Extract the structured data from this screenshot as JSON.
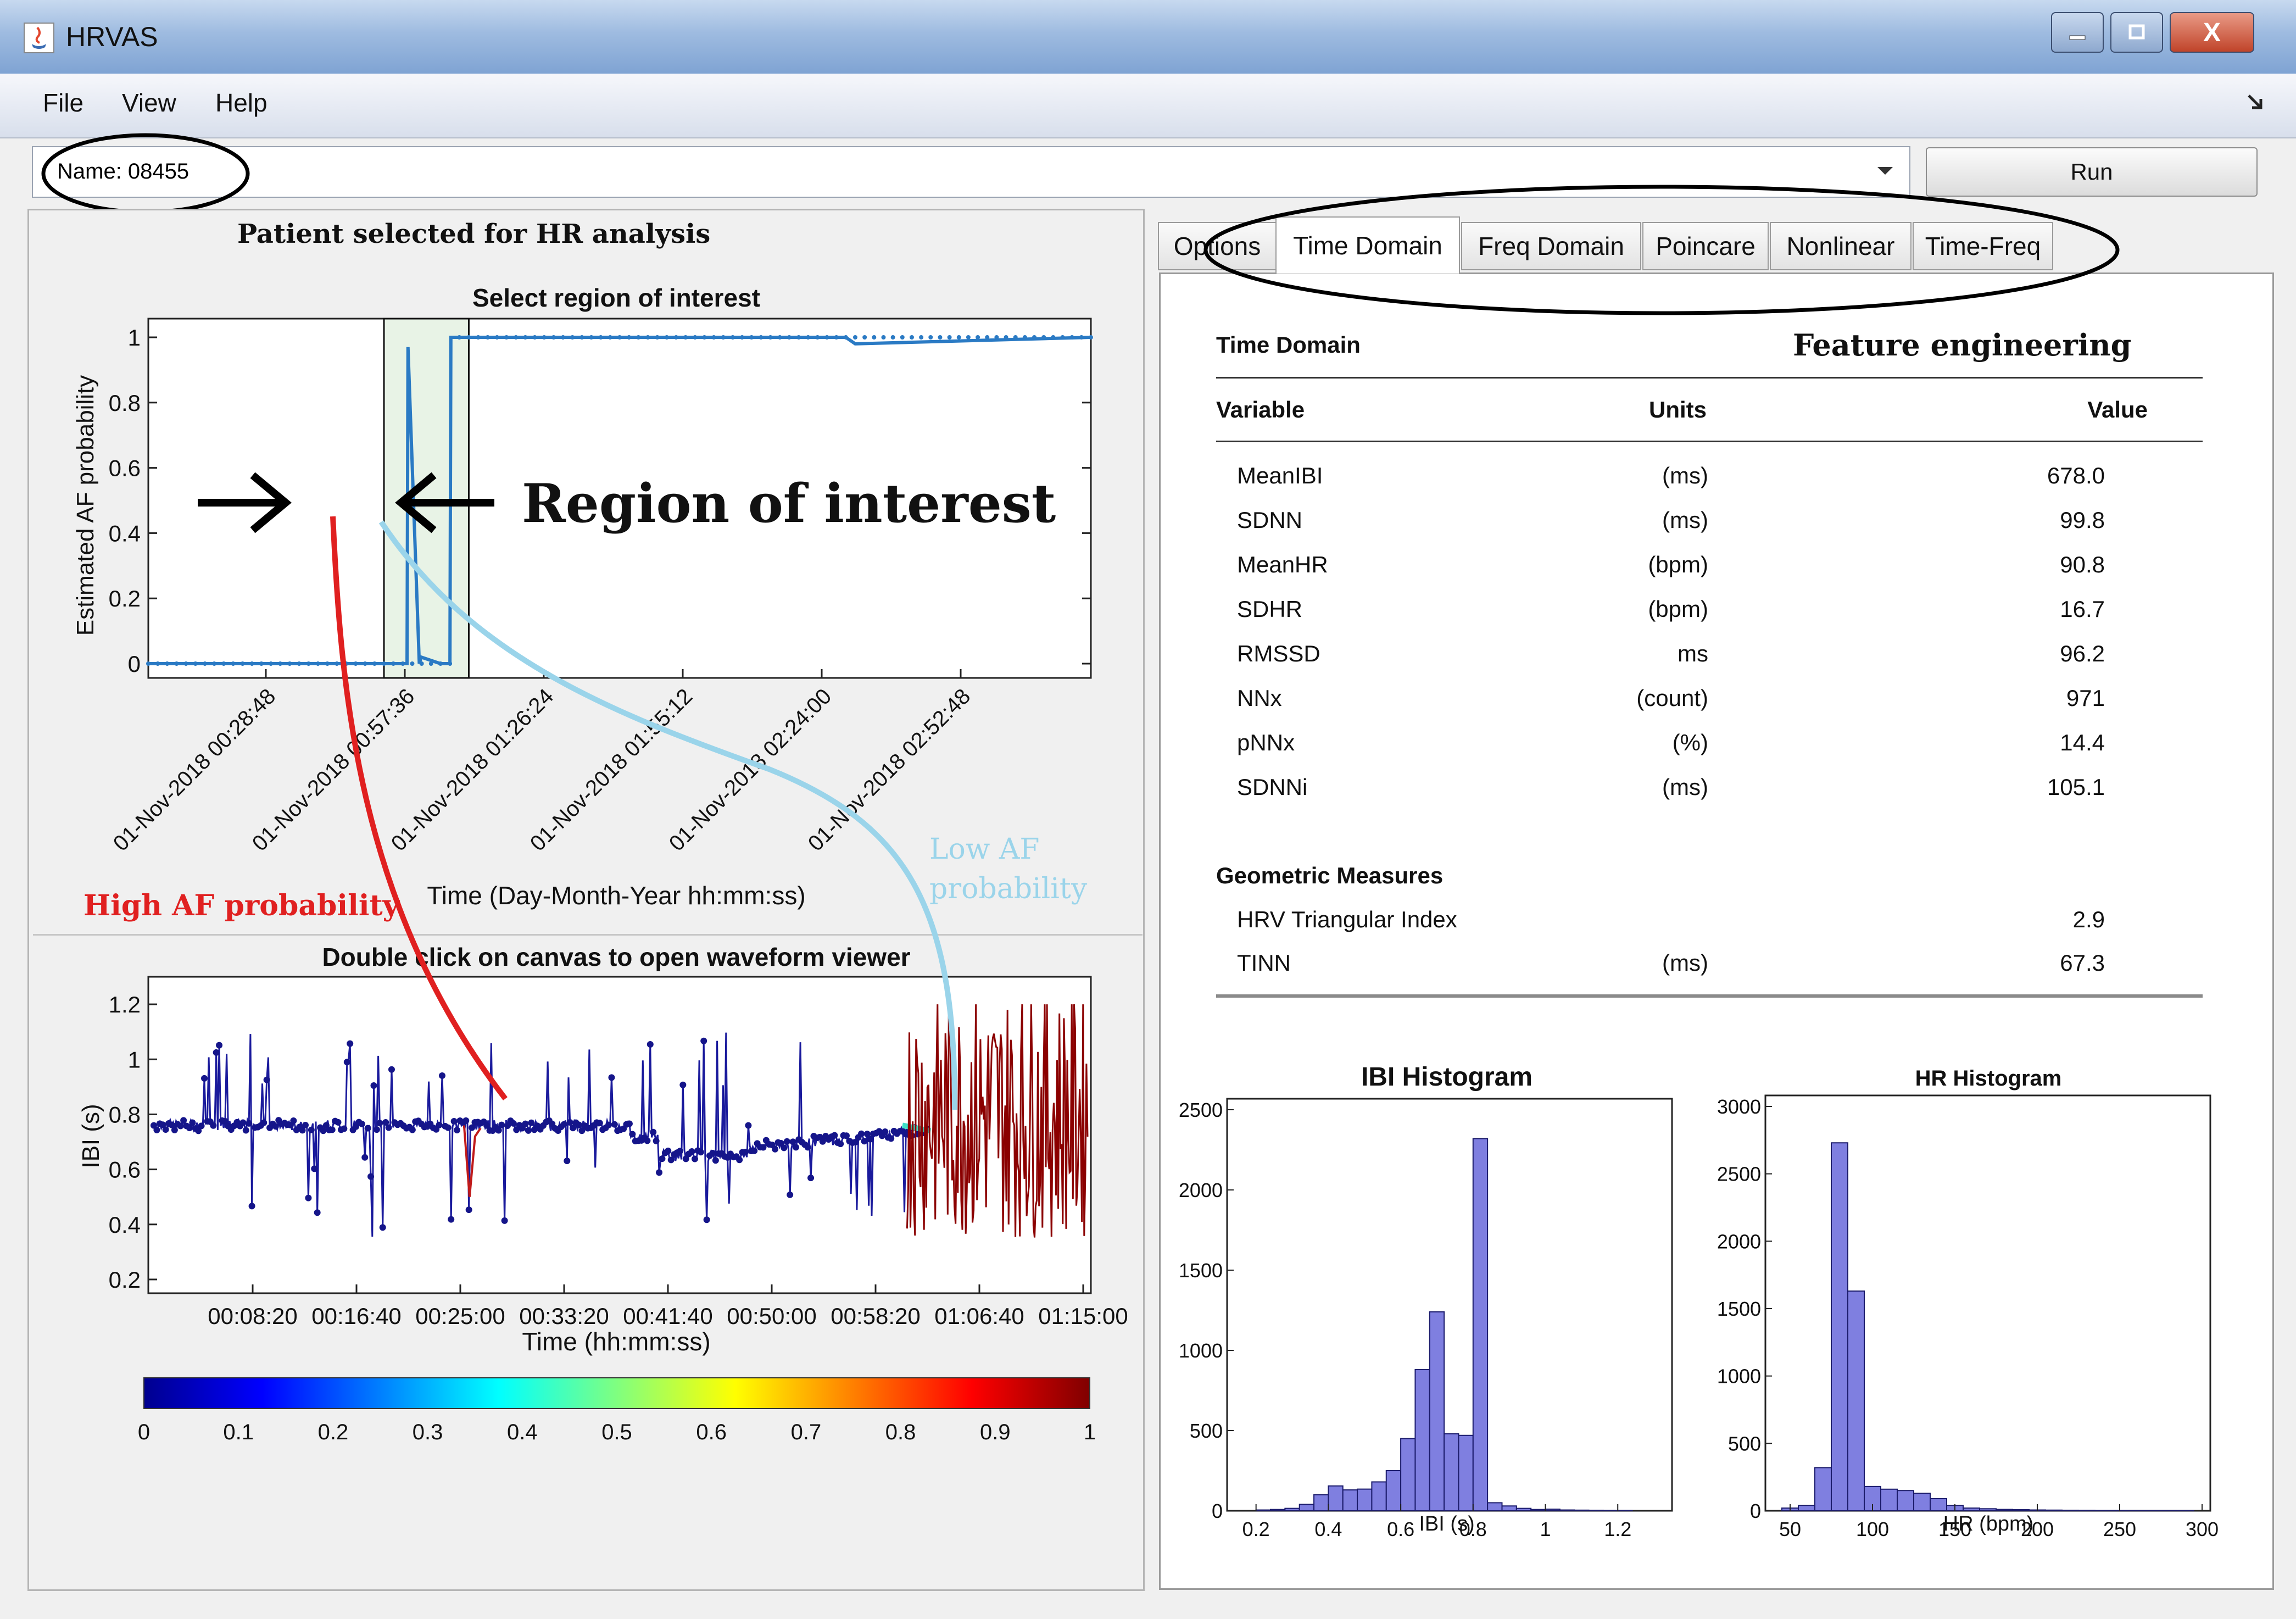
{
  "window": {
    "title": "HRVAS",
    "close_glyph": "X"
  },
  "menu": {
    "items": [
      "File",
      "View",
      "Help"
    ]
  },
  "toolbar": {
    "name_value": "Name: 08455",
    "run_label": "Run"
  },
  "tabs": [
    "Options",
    "Time Domain",
    "Freq Domain",
    "Poincare",
    "Nonlinear",
    "Time-Freq"
  ],
  "active_tab": "Time Domain",
  "annotations": {
    "patient_selected": "Patient selected for HR analysis",
    "region_of_interest": "Region of interest",
    "high_af": "High AF probability",
    "low_af_line1": "Low AF",
    "low_af_line2": "probability",
    "feature_engineering": "Feature engineering"
  },
  "time_domain": {
    "section_title": "Time Domain",
    "columns": [
      "Variable",
      "Units",
      "Value"
    ],
    "rows": [
      {
        "variable": "MeanIBI",
        "units": "(ms)",
        "value": "678.0"
      },
      {
        "variable": "SDNN",
        "units": "(ms)",
        "value": "99.8"
      },
      {
        "variable": "MeanHR",
        "units": "(bpm)",
        "value": "90.8"
      },
      {
        "variable": "SDHR",
        "units": "(bpm)",
        "value": "16.7"
      },
      {
        "variable": "RMSSD",
        "units": "ms",
        "value": "96.2"
      },
      {
        "variable": "NNx",
        "units": "(count)",
        "value": "971"
      },
      {
        "variable": "pNNx",
        "units": "(%)",
        "value": "14.4"
      },
      {
        "variable": "SDNNi",
        "units": "(ms)",
        "value": "105.1"
      }
    ],
    "geometric_title": "Geometric Measures",
    "geometric_rows": [
      {
        "variable": "HRV Triangular Index",
        "units": "",
        "value": "2.9"
      },
      {
        "variable": "TINN",
        "units": "(ms)",
        "value": "67.3"
      }
    ]
  },
  "chart_data": [
    {
      "type": "line",
      "title": "Select region of interest",
      "xlabel": "Time (Day-Month-Year hh:mm:ss)",
      "ylabel": "Estimated AF probability",
      "ylim": [
        0,
        1
      ],
      "yticks": [
        "0",
        "0.2",
        "0.4",
        "0.6",
        "0.8",
        "1"
      ],
      "xticks": [
        "01-Nov-2018 00:28:48",
        "01-Nov-2018 00:57:36",
        "01-Nov-2018 01:26:24",
        "01-Nov-2018 01:55:12",
        "01-Nov-2018 02:24:00",
        "01-Nov-2018 02:52:48"
      ],
      "x_minutes": [
        0,
        50,
        54.9,
        55.1,
        57.5,
        57.9,
        62,
        64,
        64.2,
        65,
        148,
        150,
        200
      ],
      "y": [
        0,
        0,
        0,
        0.97,
        0,
        0.02,
        0,
        0,
        1.0,
        1.0,
        1.0,
        0.98,
        1.0
      ],
      "color": "#2a7ac4",
      "selection_minutes": [
        50,
        68
      ]
    },
    {
      "type": "line",
      "title": "Double click on canvas to open waveform viewer",
      "xlabel": "Time (hh:mm:ss)",
      "ylabel": "IBI (s)",
      "ylim": [
        0.15,
        1.3
      ],
      "yticks": [
        "0.2",
        "0.4",
        "0.6",
        "0.8",
        "1",
        "1.2"
      ],
      "xticks": [
        "00:08:20",
        "00:16:40",
        "00:25:00",
        "00:33:20",
        "00:41:40",
        "00:50:00",
        "00:58:20",
        "01:06:40",
        "01:15:00"
      ],
      "colorbar": {
        "min": 0,
        "max": 1,
        "ticks": [
          "0",
          "0.1",
          "0.2",
          "0.3",
          "0.4",
          "0.5",
          "0.6",
          "0.7",
          "0.8",
          "0.9",
          "1"
        ]
      }
    },
    {
      "type": "bar",
      "title": "IBI Histogram",
      "xlabel": "IBI (s)",
      "ylim": [
        0,
        2500
      ],
      "yticks": [
        "0",
        "500",
        "1000",
        "1500",
        "2000",
        "2500"
      ],
      "xticks": [
        "0.2",
        "0.4",
        "0.6",
        "0.8",
        "1",
        "1.2"
      ],
      "bin_start": 0.2,
      "bin_width": 0.04,
      "values": [
        5,
        8,
        15,
        40,
        100,
        155,
        130,
        135,
        180,
        250,
        450,
        880,
        1240,
        480,
        470,
        2320,
        50,
        30,
        15,
        8,
        10,
        5,
        4,
        3,
        2,
        2
      ]
    },
    {
      "type": "bar",
      "title": "HR Histogram",
      "xlabel": "HR (bpm)",
      "ylim": [
        0,
        3000
      ],
      "yticks": [
        "0",
        "500",
        "1000",
        "1500",
        "2000",
        "2500",
        "3000"
      ],
      "xticks": [
        "50",
        "100",
        "150",
        "200",
        "250",
        "300"
      ],
      "bin_start": 45,
      "bin_width": 10,
      "values": [
        20,
        40,
        320,
        2730,
        1630,
        180,
        160,
        150,
        130,
        90,
        40,
        20,
        15,
        10,
        8,
        6,
        5,
        4,
        3,
        2,
        2,
        1,
        1,
        1,
        1
      ]
    }
  ],
  "colors": {
    "histogram_fill": "#7f7fe0",
    "roi_fill": "#e8f3e6",
    "annotation_red": "#e02020",
    "annotation_blue": "#9ad4ea"
  }
}
